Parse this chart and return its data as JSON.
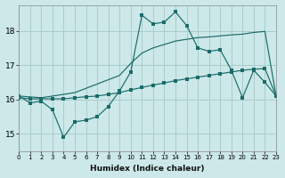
{
  "xlabel": "Humidex (Indice chaleur)",
  "bg_color": "#cce8e8",
  "grid_color": "#aacccc",
  "line_color": "#1a6b6b",
  "markersize": 2.2,
  "linewidth": 0.85,
  "xlim": [
    0,
    23
  ],
  "ylim": [
    14.5,
    18.75
  ],
  "yticks": [
    15,
    16,
    17,
    18
  ],
  "xticks": [
    0,
    1,
    2,
    3,
    4,
    5,
    6,
    7,
    8,
    9,
    10,
    11,
    12,
    13,
    14,
    15,
    16,
    17,
    18,
    19,
    20,
    21,
    22,
    23
  ],
  "line_jagged_x": [
    0,
    1,
    2,
    3,
    4,
    5,
    6,
    7,
    8,
    9,
    10,
    11,
    12,
    13,
    14,
    15,
    16,
    17,
    18,
    19,
    20,
    21,
    22,
    23
  ],
  "line_jagged_y": [
    16.1,
    15.9,
    15.95,
    15.7,
    14.9,
    15.35,
    15.4,
    15.5,
    15.8,
    16.25,
    16.8,
    18.45,
    18.2,
    18.25,
    18.55,
    18.15,
    17.5,
    17.4,
    17.45,
    16.85,
    16.05,
    16.85,
    16.5,
    16.1
  ],
  "line_upper_x": [
    0,
    2,
    5,
    9,
    10,
    11,
    12,
    13,
    14,
    15,
    16,
    17,
    18,
    19,
    20,
    21,
    22,
    23
  ],
  "line_upper_y": [
    16.1,
    16.05,
    16.2,
    16.7,
    17.05,
    17.35,
    17.5,
    17.6,
    17.7,
    17.75,
    17.8,
    17.82,
    17.85,
    17.88,
    17.9,
    17.95,
    17.98,
    16.1
  ],
  "line_lower_x": [
    0,
    1,
    2,
    3,
    4,
    5,
    6,
    7,
    8,
    9,
    10,
    11,
    12,
    13,
    14,
    15,
    16,
    17,
    18,
    19,
    20,
    21,
    22,
    23
  ],
  "line_lower_y": [
    16.05,
    16.02,
    16.02,
    16.02,
    16.02,
    16.05,
    16.08,
    16.1,
    16.15,
    16.2,
    16.28,
    16.35,
    16.42,
    16.48,
    16.55,
    16.6,
    16.65,
    16.7,
    16.75,
    16.8,
    16.85,
    16.88,
    16.9,
    16.1
  ]
}
